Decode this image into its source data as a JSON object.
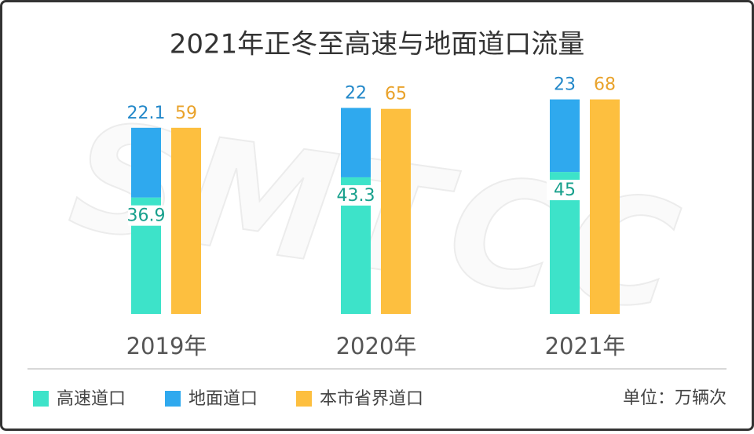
{
  "chart_data": {
    "type": "bar",
    "title": "2021年正冬至高速与地面道口流量",
    "categories": [
      "2019年",
      "2020年",
      "2021年"
    ],
    "series": [
      {
        "name": "高速道口",
        "color": "#3de3c9",
        "stack": "a",
        "values": [
          36.9,
          43.3,
          45
        ]
      },
      {
        "name": "地面道口",
        "color": "#2fa9ee",
        "stack": "a",
        "values": [
          22.1,
          22,
          23
        ]
      },
      {
        "name": "本市省界道口",
        "color": "#fdbf3f",
        "stack": "b",
        "values": [
          59,
          65,
          68
        ]
      }
    ],
    "unit_note": "单位：万辆次",
    "watermark": "SMTCC"
  }
}
